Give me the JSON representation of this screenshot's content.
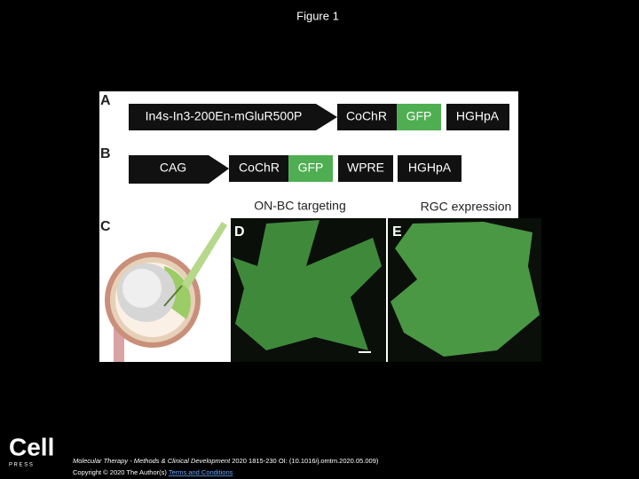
{
  "header": {
    "title": "Figure 1"
  },
  "figure": {
    "panels": [
      "A",
      "B",
      "C",
      "D",
      "E"
    ],
    "construct_a": {
      "promoter": "In4s-In3-200En-mGluR500P",
      "opsin": "CoChR",
      "reporter": "GFP",
      "polya": "HGHpA"
    },
    "construct_b": {
      "promoter": "CAG",
      "opsin": "CoChR",
      "reporter": "GFP",
      "element": "WPRE",
      "polya": "HGHpA"
    },
    "image_labels": [
      "ON-BC targeting",
      "RGC expression"
    ]
  },
  "footer": {
    "logo": "Cell",
    "logo_sub": "P R E S S",
    "journal": "Molecular Therapy - Methods & Clinical Development",
    "citation": "2020 1815-230 OI: (10.1016/j.omtm.2020.05.009)",
    "copyright": "Copyright © 2020 The Author(s)",
    "link": "Terms and Conditions"
  }
}
